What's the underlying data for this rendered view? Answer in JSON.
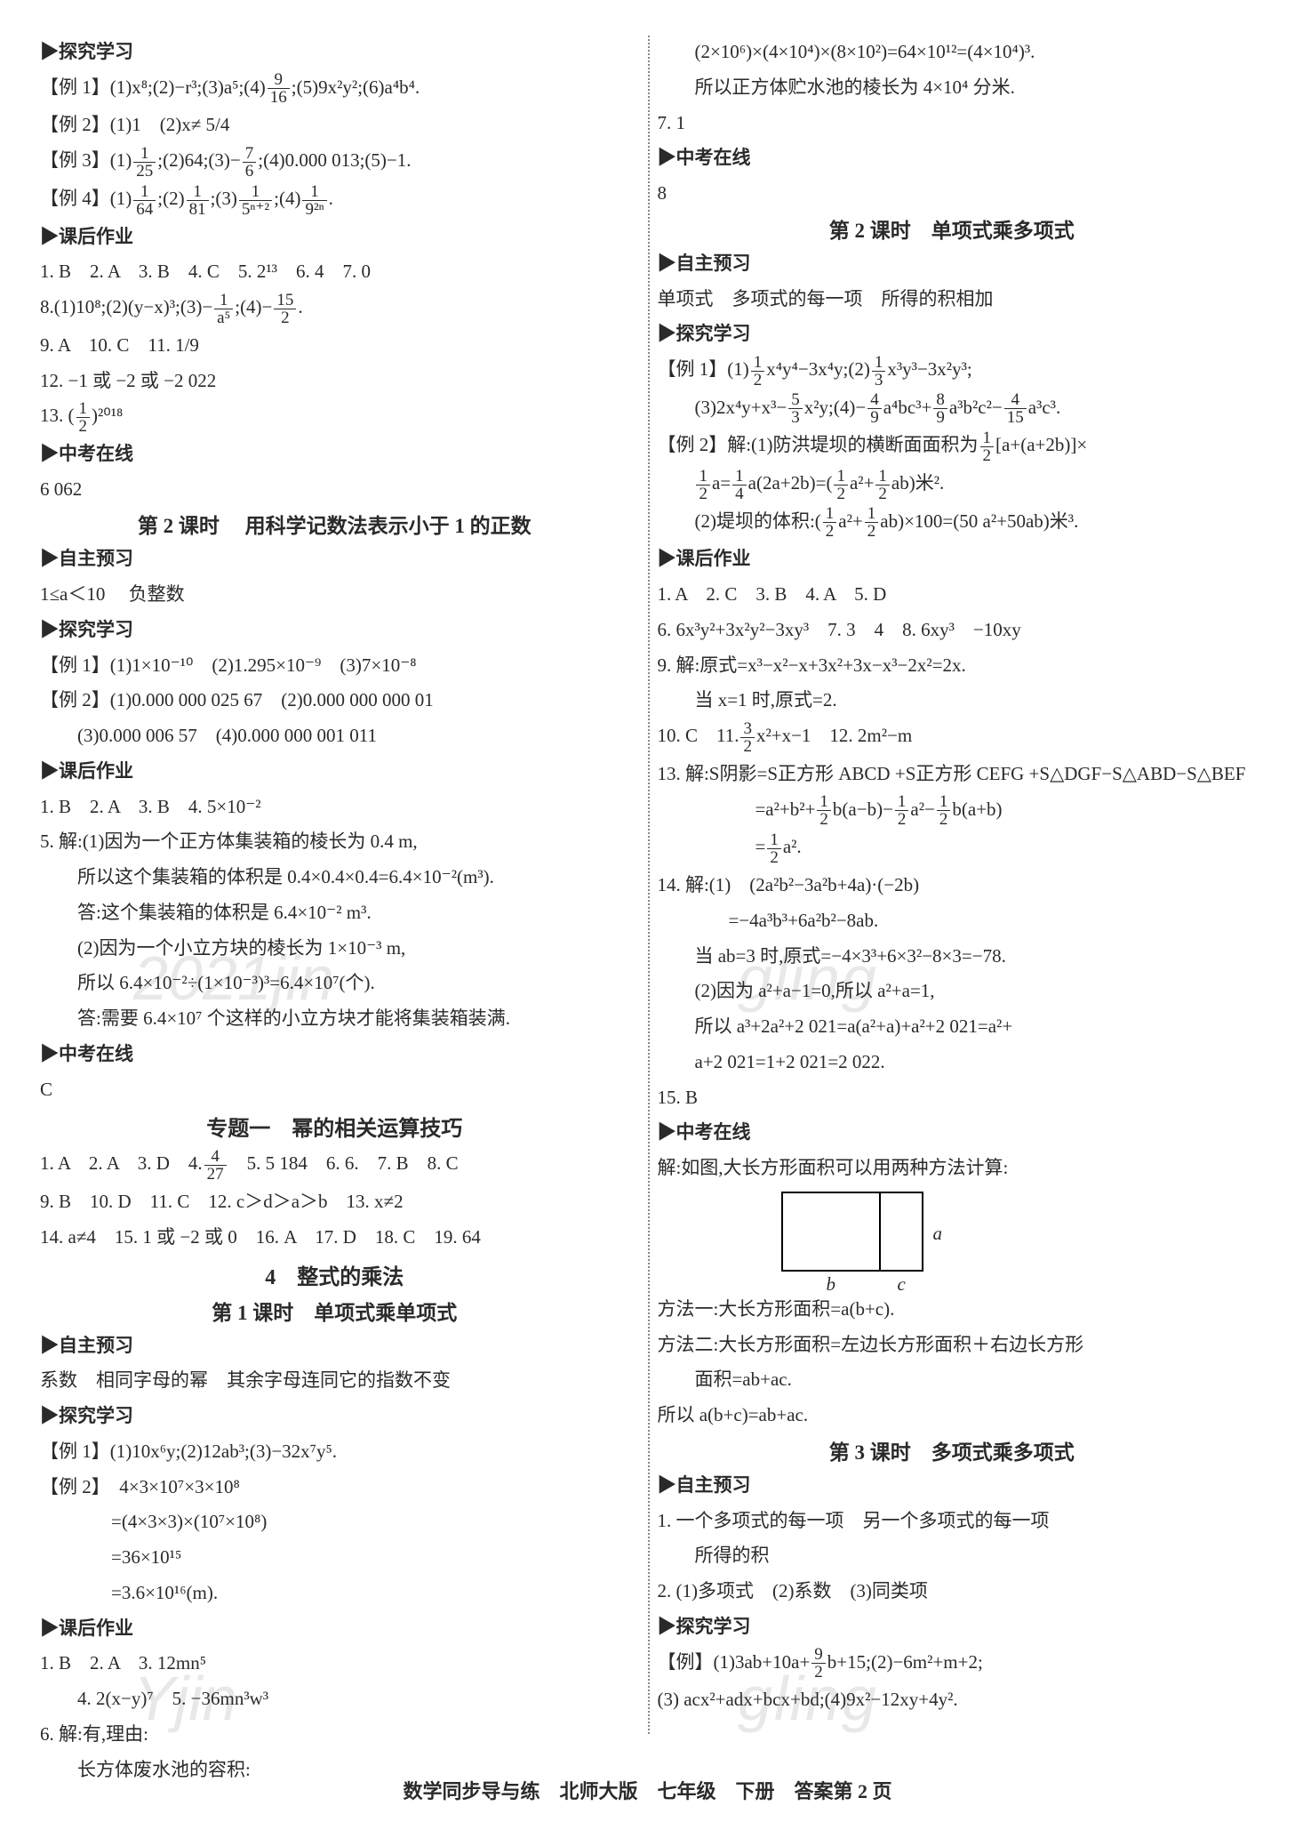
{
  "left": {
    "s1_marker": "▶探究学习",
    "l1": "【例 1】(1)x⁸;(2)−r³;(3)a⁵;(4) 9/16 ;(5)9x²y²;(6)a⁴b⁴.",
    "l2": "【例 2】(1)1　(2)x≠ 5/4",
    "l3": "【例 3】(1) 1/25 ;(2)64;(3)− 7/6 ;(4)0.000 013;(5)−1.",
    "l4": "【例 4】(1) 1/64 ;(2) 1/81 ;(3) 1/5ⁿ⁺² ;(4) 1/9²ⁿ .",
    "s2_marker": "▶课后作业",
    "l5": "1. B　2. A　3. B　4. C　5. 2¹³　6. 4　7. 0",
    "l6": "8.(1)10⁸;(2)(y−x)³;(3)− 1/a⁵ ;(4)− 15/2 .",
    "l7": "9. A　10. C　11. 1/9",
    "l8": "12. −1 或 −2 或 −2 022",
    "l9": "13. ( 1/2 )²⁰¹⁸",
    "s3_marker": "▶中考在线",
    "l10": "6 062",
    "h2": "第 2 课时　 用科学记数法表示小于 1 的正数",
    "s4_marker": "▶自主预习",
    "l11": "1≤a＜10　 负整数",
    "s5_marker": "▶探究学习",
    "l12": "【例 1】(1)1×10⁻¹⁰　(2)1.295×10⁻⁹　(3)7×10⁻⁸",
    "l13": "【例 2】(1)0.000 000 025 67　(2)0.000 000 000 01",
    "l14": "(3)0.000 006 57　(4)0.000 000 001 011",
    "s6_marker": "▶课后作业",
    "l15": "1. B　2. A　3. B　4. 5×10⁻²",
    "l16": "5. 解:(1)因为一个正方体集装箱的棱长为 0.4 m,",
    "l17": "所以这个集装箱的体积是 0.4×0.4×0.4=6.4×10⁻²(m³).",
    "l18": "答:这个集装箱的体积是 6.4×10⁻² m³.",
    "l19": "(2)因为一个小立方块的棱长为 1×10⁻³ m,",
    "l20": "所以 6.4×10⁻²÷(1×10⁻³)³=6.4×10⁷(个).",
    "l21": "答:需要 6.4×10⁷ 个这样的小立方块才能将集装箱装满.",
    "s7_marker": "▶中考在线",
    "l22": "C",
    "h3": "专题一　幂的相关运算技巧",
    "l23": "1. A　2. A　3. D　4. 4/27 　5. 5 184　6. 6.　7. B　8. C",
    "l24": "9. B　10. D　11. C　12. c＞d＞a＞b　13. x≠2",
    "l25": "14. a≠4　15. 1 或 −2 或 0　16. A　17. D　18. C　19. 64",
    "h4": "4　整式的乘法",
    "sub4": "第 1 课时　单项式乘单项式",
    "s8_marker": "▶自主预习",
    "l26": "系数　相同字母的幂　其余字母连同它的指数不变",
    "s9_marker": "▶探究学习",
    "l27": "【例 1】(1)10x⁶y;(2)12ab³;(3)−32x⁷y⁵.",
    "l28": "【例 2】　4×3×10⁷×3×10⁸",
    "l29": "=(4×3×3)×(10⁷×10⁸)",
    "l30": "=36×10¹⁵",
    "l31": "=3.6×10¹⁶(m).",
    "s10_marker": "▶课后作业",
    "l32": "1. B　2. A　3. 12mn⁵",
    "l33": "4. 2(x−y)⁷　5. −36mn³w³",
    "l34": "6. 解:有,理由:",
    "l35": "长方体废水池的容积:"
  },
  "right": {
    "r1": "(2×10⁶)×(4×10⁴)×(8×10²)=64×10¹²=(4×10⁴)³.",
    "r2": "所以正方体贮水池的棱长为 4×10⁴ 分米.",
    "r3": "7. 1",
    "s1_marker": "▶中考在线",
    "r4": "8",
    "h2": "第 2 课时　单项式乘多项式",
    "s2_marker": "▶自主预习",
    "r5": "单项式　多项式的每一项　所得的积相加",
    "s3_marker": "▶探究学习",
    "r6": "【例 1】(1) 1/2 x⁴y⁴−3x⁴y;(2) 1/3 x³y³−3x²y³;",
    "r7": "(3)2x⁴y+x³− 5/3 x²y;(4)− 4/9 a⁴bc³+ 8/9 a³b²c²− 4/15 a³c³.",
    "r8": "【例 2】解:(1)防洪堤坝的横断面面积为 1/2 [a+(a+2b)]×",
    "r9": " 1/2 a= 1/4 a(2a+2b)=( 1/2 a²+ 1/2 ab)米².",
    "r10": "(2)堤坝的体积:( 1/2 a²+ 1/2 ab)×100=(50 a²+50ab)米³.",
    "s4_marker": "▶课后作业",
    "r11": "1. A　2. C　3. B　4. A　5. D",
    "r12": "6. 6x³y²+3x²y²−3xy³　7. 3　4　8. 6xy³　−10xy",
    "r13": "9. 解:原式=x³−x²−x+3x²+3x−x³−2x²=2x.",
    "r14": "当 x=1 时,原式=2.",
    "r15": "10. C　11. 3/2 x²+x−1　12. 2m²−m",
    "r16": "13. 解:S阴影=S正方形 ABCD +S正方形 CEFG +S△DGF−S△ABD−S△BEF",
    "r17": "=a²+b²+ 1/2 b(a−b)− 1/2 a²− 1/2 b(a+b)",
    "r18": "= 1/2 a².",
    "r19": "14. 解:(1)　(2a²b²−3a²b+4a)·(−2b)",
    "r20": "=−4a³b³+6a²b²−8ab.",
    "r21": "当 ab=3 时,原式=−4×3³+6×3²−8×3=−78.",
    "r22": "(2)因为 a²+a−1=0,所以 a²+a=1,",
    "r23": "所以 a³+2a²+2 021=a(a²+a)+a²+2 021=a²+",
    "r24": "a+2 021=1+2 021=2 022.",
    "r25": "15. B",
    "s5_marker": "▶中考在线",
    "r26": "解:如图,大长方形面积可以用两种方法计算:",
    "diagram": {
      "a": "a",
      "b": "b",
      "c": "c"
    },
    "r27": "方法一:大长方形面积=a(b+c).",
    "r28": "方法二:大长方形面积=左边长方形面积＋右边长方形",
    "r29": "面积=ab+ac.",
    "r30": "所以 a(b+c)=ab+ac.",
    "h3": "第 3 课时　多项式乘多项式",
    "s6_marker": "▶自主预习",
    "r31": "1. 一个多项式的每一项　另一个多项式的每一项",
    "r32": "所得的积",
    "r33": "2. (1)多项式　(2)系数　(3)同类项",
    "s7_marker": "▶探究学习",
    "r34": "【例】(1)3ab+10a+ 9/2 b+15;(2)−6m²+m+2;",
    "r35": "(3) acx²+adx+bcx+bd;(4)9x²−12xy+4y².　　　"
  },
  "footer": "数学同步导与练　北师大版　七年级　下册　答案第 2 页",
  "watermarks": {
    "w1": "2021jin",
    "w2": "gling",
    "w3": "Yjin",
    "w4": "gling"
  }
}
